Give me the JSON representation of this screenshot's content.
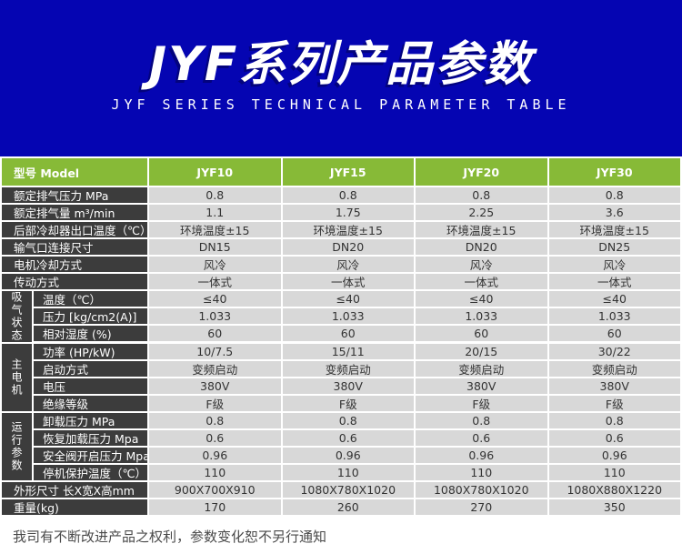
{
  "colors": {
    "blue": "#0505b2",
    "green": "#87ba37",
    "dark_cell": "#3c3c3c",
    "light_cell": "#d8d8d8",
    "value_text": "#333333",
    "note_text": "#4a4a4a"
  },
  "hero": {
    "title": "JYF系列产品参数",
    "subtitle": "JYF SERIES TECHNICAL PARAMETER TABLE"
  },
  "table": {
    "header": {
      "label": "型号 Model",
      "models": [
        "JYF10",
        "JYF15",
        "JYF20",
        "JYF30"
      ]
    },
    "sections": [
      {
        "type": "rows",
        "rows": [
          {
            "label": "额定排气压力 MPa",
            "values": [
              "0.8",
              "0.8",
              "0.8",
              "0.8"
            ]
          },
          {
            "label": "额定排气量 m³/min",
            "values": [
              "1.1",
              "1.75",
              "2.25",
              "3.6"
            ]
          },
          {
            "label": "后部冷却器出口温度（℃）",
            "values": [
              "环境温度±15",
              "环境温度±15",
              "环境温度±15",
              "环境温度±15"
            ]
          },
          {
            "label": "输气口连接尺寸",
            "values": [
              "DN15",
              "DN20",
              "DN20",
              "DN25"
            ]
          },
          {
            "label": "电机冷却方式",
            "values": [
              "风冷",
              "风冷",
              "风冷",
              "风冷"
            ]
          },
          {
            "label": "传动方式",
            "values": [
              "一体式",
              "一体式",
              "一体式",
              "一体式"
            ]
          }
        ]
      },
      {
        "type": "group",
        "group_label": "吸气状态",
        "rows": [
          {
            "label": "温度（℃）",
            "values": [
              "≤40",
              "≤40",
              "≤40",
              "≤40"
            ]
          },
          {
            "label": "压力 [kg/cm2(A)]",
            "values": [
              "1.033",
              "1.033",
              "1.033",
              "1.033"
            ]
          },
          {
            "label": "相对湿度 (%)",
            "values": [
              "60",
              "60",
              "60",
              "60"
            ]
          }
        ]
      },
      {
        "type": "group",
        "group_label": "主电机",
        "rows": [
          {
            "label": "功率 (HP/kW)",
            "values": [
              "10/7.5",
              "15/11",
              "20/15",
              "30/22"
            ]
          },
          {
            "label": "启动方式",
            "values": [
              "变频启动",
              "变频启动",
              "变频启动",
              "变频启动"
            ]
          },
          {
            "label": "电压",
            "values": [
              "380V",
              "380V",
              "380V",
              "380V"
            ]
          },
          {
            "label": "绝缘等级",
            "values": [
              "F级",
              "F级",
              "F级",
              "F级"
            ]
          }
        ]
      },
      {
        "type": "group",
        "group_label": "运行参数",
        "rows": [
          {
            "label": "卸载压力 MPa",
            "values": [
              "0.8",
              "0.8",
              "0.8",
              "0.8"
            ]
          },
          {
            "label": "恢复加载压力 Mpa",
            "values": [
              "0.6",
              "0.6",
              "0.6",
              "0.6"
            ]
          },
          {
            "label": "安全阀开启压力 Mpa",
            "values": [
              "0.96",
              "0.96",
              "0.96",
              "0.96"
            ]
          },
          {
            "label": "停机保护温度（℃）",
            "values": [
              "110",
              "110",
              "110",
              "110"
            ]
          }
        ]
      },
      {
        "type": "rows",
        "rows": [
          {
            "label": "外形尺寸 长X宽X高mm",
            "values": [
              "900X700X910",
              "1080X780X1020",
              "1080X780X1020",
              "1080X880X1220"
            ]
          },
          {
            "label": "重量(kg)",
            "values": [
              "170",
              "260",
              "270",
              "350"
            ]
          }
        ]
      }
    ]
  },
  "footer": {
    "note": "我司有不断改进产品之权利，参数变化恕不另行通知"
  }
}
